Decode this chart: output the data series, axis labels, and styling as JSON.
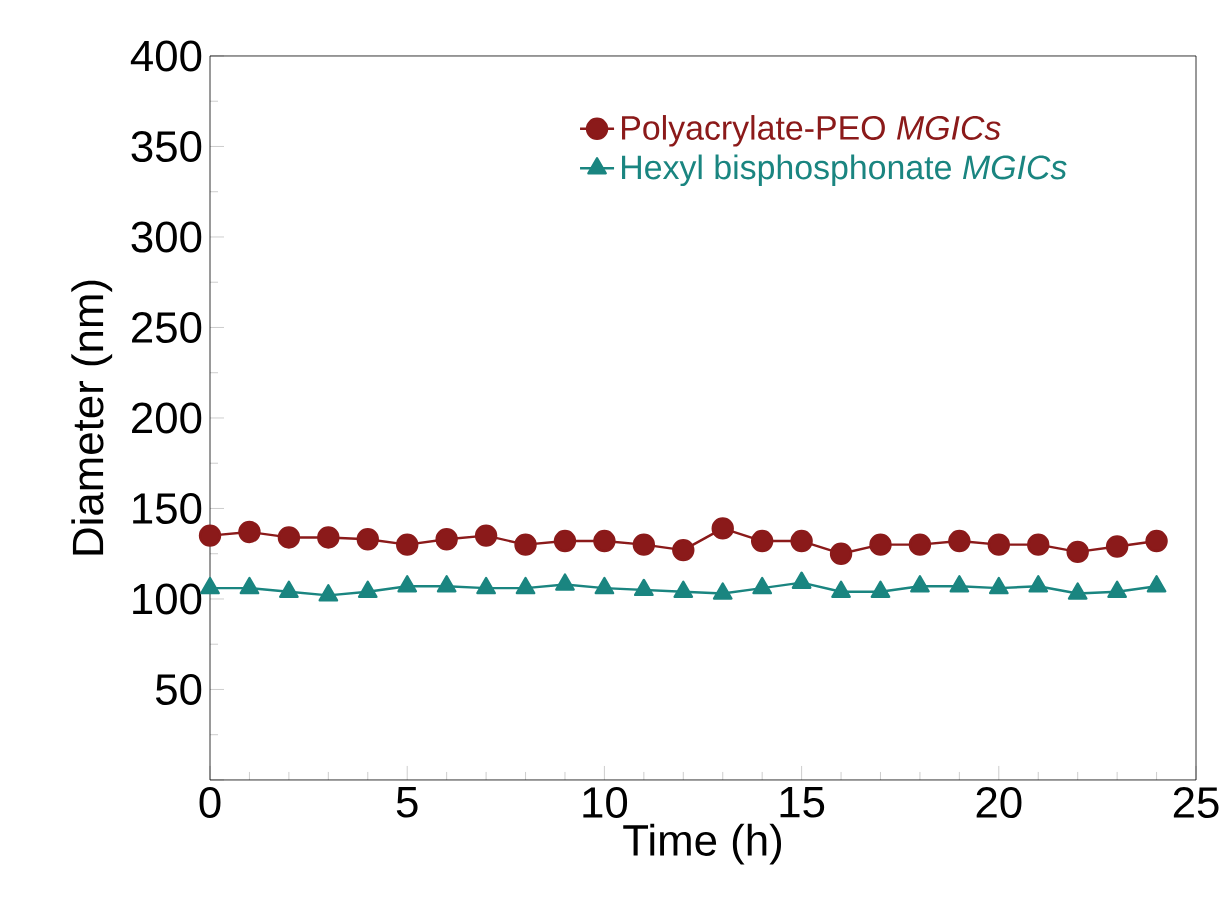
{
  "chart_data": {
    "type": "line",
    "xlabel": "Time (h)",
    "ylabel": "Diameter (nm)",
    "x": [
      0,
      1,
      2,
      3,
      4,
      5,
      6,
      7,
      8,
      9,
      10,
      11,
      12,
      13,
      14,
      15,
      16,
      17,
      18,
      19,
      20,
      21,
      22,
      23,
      24
    ],
    "series": [
      {
        "name": "Polyacrylate-PEO *MGICs*",
        "color": "#8b1a1a",
        "marker": "circle",
        "values": [
          135,
          137,
          134,
          134,
          133,
          130,
          133,
          135,
          130,
          132,
          132,
          130,
          127,
          139,
          132,
          132,
          125,
          130,
          130,
          132,
          130,
          130,
          126,
          129,
          132
        ]
      },
      {
        "name": "Hexyl bisphosphonate *MGICs*",
        "color": "#1a8580",
        "marker": "triangle",
        "values": [
          106,
          106,
          104,
          102,
          104,
          107,
          107,
          106,
          106,
          108,
          106,
          105,
          104,
          103,
          106,
          109,
          104,
          104,
          107,
          107,
          106,
          107,
          103,
          104,
          107
        ]
      }
    ],
    "xlim": [
      0,
      25
    ],
    "xticks": [
      0,
      5,
      10,
      15,
      20,
      25
    ],
    "ylim": [
      0,
      400
    ],
    "yticks": [
      {
        "value": 0,
        "label": null
      },
      50,
      100,
      150,
      200,
      250,
      300,
      350,
      400
    ],
    "legend": "top right",
    "grid": false,
    "line_style": "solid"
  }
}
